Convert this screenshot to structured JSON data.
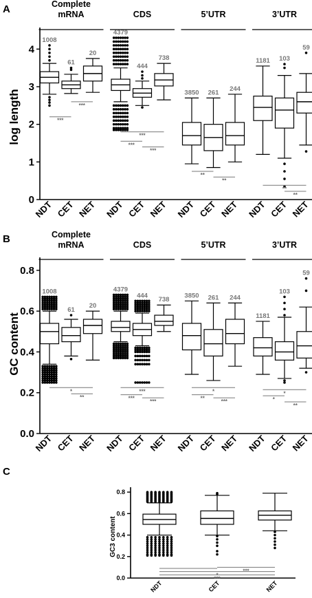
{
  "panels": [
    {
      "letter": "A",
      "ylabel": "log length",
      "yticks": [
        "0",
        "1",
        "2",
        "3",
        "4"
      ],
      "ylim": [
        0,
        4.5
      ],
      "groups": [
        "Complete mRNA",
        "CDS",
        "5’UTR",
        "3’UTR"
      ],
      "categories": [
        "NDT",
        "CET",
        "NET"
      ]
    },
    {
      "letter": "B",
      "ylabel": "GC content",
      "yticks": [
        "0.0",
        "0.2",
        "0.4",
        "0.6",
        "0.8"
      ],
      "ylim": [
        0,
        0.85
      ],
      "groups": [
        "Complete mRNA",
        "CDS",
        "5’UTR",
        "3’UTR"
      ],
      "categories": [
        "NDT",
        "CET",
        "NET"
      ]
    },
    {
      "letter": "C",
      "ylabel": "GC3 content",
      "yticks": [
        "0.0",
        "0.2",
        "0.4",
        "0.6",
        "0.8"
      ],
      "ylim": [
        0,
        0.82
      ],
      "groups": [],
      "categories": [
        "NDT",
        "CET",
        "NET"
      ]
    }
  ],
  "chart_data": [
    {
      "type": "box",
      "panel": "A",
      "ylabel": "log length",
      "ylim": [
        0,
        4.5
      ],
      "groups": [
        {
          "name": "Complete mRNA",
          "boxes": [
            {
              "category": "NDT",
              "count": "1008",
              "whislo": 2.8,
              "q1": 3.1,
              "med": 3.25,
              "q3": 3.4,
              "whishi": 3.62,
              "outliers_low": [
                2.72,
                2.65,
                2.58,
                2.5
              ],
              "outliers_high": [
                3.7,
                3.8,
                3.9,
                4.0,
                4.1
              ]
            },
            {
              "category": "CET",
              "count": "61",
              "whislo": 2.82,
              "q1": 2.95,
              "med": 3.05,
              "q3": 3.15,
              "whishi": 3.33,
              "outliers_low": [],
              "outliers_high": [
                3.45,
                3.5
              ]
            },
            {
              "category": "NET",
              "count": "20",
              "whislo": 2.85,
              "q1": 3.15,
              "med": 3.35,
              "q3": 3.55,
              "whishi": 3.75,
              "outliers_low": [],
              "outliers_high": []
            }
          ]
        },
        {
          "name": "CDS",
          "boxes": [
            {
              "category": "NDT",
              "count": "4379",
              "whislo": 2.6,
              "q1": 2.9,
              "med": 3.05,
              "q3": 3.2,
              "whishi": 3.5,
              "outliers_low": [
                2.5,
                2.4,
                2.3,
                2.2,
                2.1,
                2.0,
                1.9,
                1.85
              ],
              "outliers_high": [
                3.6,
                3.7,
                3.8,
                3.9,
                4.0,
                4.1,
                4.2,
                4.3
              ]
            },
            {
              "category": "CET",
              "count": "444",
              "whislo": 2.5,
              "q1": 2.72,
              "med": 2.83,
              "q3": 2.95,
              "whishi": 3.15,
              "outliers_low": [
                2.45
              ],
              "outliers_high": [
                3.22,
                3.3,
                3.4
              ]
            },
            {
              "category": "NET",
              "count": "738",
              "whislo": 2.65,
              "q1": 3.02,
              "med": 3.18,
              "q3": 3.35,
              "whishi": 3.62,
              "outliers_low": [],
              "outliers_high": []
            }
          ]
        },
        {
          "name": "5’UTR",
          "boxes": [
            {
              "category": "NDT",
              "count": "3850",
              "whislo": 0.95,
              "q1": 1.45,
              "med": 1.7,
              "q3": 2.05,
              "whishi": 2.7,
              "outliers_low": [],
              "outliers_high": []
            },
            {
              "category": "CET",
              "count": "261",
              "whislo": 0.85,
              "q1": 1.3,
              "med": 1.65,
              "q3": 2.0,
              "whishi": 2.7,
              "outliers_low": [],
              "outliers_high": []
            },
            {
              "category": "NET",
              "count": "244",
              "whislo": 1.0,
              "q1": 1.45,
              "med": 1.7,
              "q3": 2.05,
              "whishi": 2.8,
              "outliers_low": [],
              "outliers_high": []
            }
          ]
        },
        {
          "name": "3’UTR",
          "boxes": [
            {
              "category": "NDT",
              "count": "1181",
              "whislo": 1.2,
              "q1": 2.1,
              "med": 2.45,
              "q3": 2.75,
              "whishi": 3.55,
              "outliers_low": [],
              "outliers_high": []
            },
            {
              "category": "CET",
              "count": "103",
              "whislo": 1.1,
              "q1": 1.9,
              "med": 2.38,
              "q3": 2.7,
              "whishi": 3.3,
              "outliers_low": [
                0.95,
                0.75,
                0.55,
                0.35
              ],
              "outliers_high": [
                3.5,
                3.6
              ]
            },
            {
              "category": "NET",
              "count": "59",
              "whislo": 1.45,
              "q1": 2.3,
              "med": 2.6,
              "q3": 2.85,
              "whishi": 3.35,
              "outliers_low": [
                1.28
              ],
              "outliers_high": [
                3.9
              ]
            }
          ]
        }
      ],
      "significance": [
        {
          "group": 0,
          "from": 0,
          "to": 1,
          "label": "***",
          "y": 2.2
        },
        {
          "group": 0,
          "from": 1,
          "to": 2,
          "label": "***",
          "y": 2.6
        },
        {
          "group": 1,
          "from": 0,
          "to": 2,
          "label": "***",
          "y": 1.8
        },
        {
          "group": 1,
          "from": 0,
          "to": 1,
          "label": "***",
          "y": 1.55
        },
        {
          "group": 1,
          "from": 1,
          "to": 2,
          "label": "***",
          "y": 1.4
        },
        {
          "group": 2,
          "from": 0,
          "to": 1,
          "label": "**",
          "y": 0.75
        },
        {
          "group": 2,
          "from": 1,
          "to": 2,
          "label": "**",
          "y": 0.6
        },
        {
          "group": 3,
          "from": 0,
          "to": 2,
          "label": "**",
          "y": 0.38
        },
        {
          "group": 3,
          "from": 1,
          "to": 2,
          "label": "**",
          "y": 0.22
        }
      ]
    },
    {
      "type": "box",
      "panel": "B",
      "ylabel": "GC content",
      "ylim": [
        0,
        0.85
      ],
      "groups": [
        {
          "name": "Complete mRNA",
          "boxes": [
            {
              "category": "NDT",
              "count": "1008",
              "whislo": 0.34,
              "q1": 0.44,
              "med": 0.5,
              "q3": 0.54,
              "whishi": 0.6,
              "outliers_low": [
                0.33,
                0.32,
                0.31,
                0.3,
                0.29,
                0.28,
                0.27,
                0.26,
                0.25
              ],
              "outliers_high": [
                0.61,
                0.62,
                0.63,
                0.64,
                0.65,
                0.66,
                0.67
              ]
            },
            {
              "category": "CET",
              "count": "61",
              "whislo": 0.38,
              "q1": 0.45,
              "med": 0.48,
              "q3": 0.52,
              "whishi": 0.56,
              "outliers_low": [
                0.365
              ],
              "outliers_high": [
                0.58
              ]
            },
            {
              "category": "NET",
              "count": "20",
              "whislo": 0.36,
              "q1": 0.49,
              "med": 0.53,
              "q3": 0.56,
              "whishi": 0.6,
              "outliers_low": [],
              "outliers_high": []
            }
          ]
        },
        {
          "name": "CDS",
          "boxes": [
            {
              "category": "NDT",
              "count": "4379",
              "whislo": 0.45,
              "q1": 0.5,
              "med": 0.52,
              "q3": 0.55,
              "whishi": 0.6,
              "outliers_low": [
                0.44,
                0.43,
                0.42,
                0.41,
                0.4,
                0.39,
                0.38,
                0.37
              ],
              "outliers_high": [
                0.61,
                0.62,
                0.63,
                0.64,
                0.65,
                0.66,
                0.67,
                0.68
              ]
            },
            {
              "category": "CET",
              "count": "444",
              "whislo": 0.43,
              "q1": 0.48,
              "med": 0.51,
              "q3": 0.54,
              "whishi": 0.59,
              "outliers_low": [
                0.42,
                0.41,
                0.4,
                0.38,
                0.36,
                0.34,
                0.25
              ],
              "outliers_high": [
                0.6,
                0.61,
                0.62,
                0.63,
                0.64,
                0.65
              ]
            },
            {
              "category": "NET",
              "count": "738",
              "whislo": 0.5,
              "q1": 0.53,
              "med": 0.55,
              "q3": 0.58,
              "whishi": 0.63,
              "outliers_low": [],
              "outliers_high": []
            }
          ]
        },
        {
          "name": "5’UTR",
          "boxes": [
            {
              "category": "NDT",
              "count": "3850",
              "whislo": 0.29,
              "q1": 0.41,
              "med": 0.48,
              "q3": 0.54,
              "whishi": 0.65,
              "outliers_low": [],
              "outliers_high": []
            },
            {
              "category": "CET",
              "count": "261",
              "whislo": 0.26,
              "q1": 0.38,
              "med": 0.44,
              "q3": 0.51,
              "whishi": 0.64,
              "outliers_low": [],
              "outliers_high": []
            },
            {
              "category": "NET",
              "count": "244",
              "whislo": 0.33,
              "q1": 0.44,
              "med": 0.49,
              "q3": 0.56,
              "whishi": 0.64,
              "outliers_low": [],
              "outliers_high": []
            }
          ]
        },
        {
          "name": "3’UTR",
          "boxes": [
            {
              "category": "NDT",
              "count": "1181",
              "whislo": 0.29,
              "q1": 0.38,
              "med": 0.42,
              "q3": 0.47,
              "whishi": 0.55,
              "outliers_low": [],
              "outliers_high": []
            },
            {
              "category": "CET",
              "count": "103",
              "whislo": 0.27,
              "q1": 0.36,
              "med": 0.4,
              "q3": 0.45,
              "whishi": 0.57,
              "outliers_low": [
                0.26,
                0.25
              ],
              "outliers_high": [
                0.58,
                0.61,
                0.64,
                0.67
              ]
            },
            {
              "category": "NET",
              "count": "59",
              "whislo": 0.32,
              "q1": 0.37,
              "med": 0.43,
              "q3": 0.5,
              "whishi": 0.62,
              "outliers_low": [
                0.3
              ],
              "outliers_high": [
                0.7,
                0.76
              ]
            }
          ]
        }
      ],
      "significance": [
        {
          "group": 0,
          "from": 0,
          "to": 2,
          "label": "*",
          "y": 0.225
        },
        {
          "group": 0,
          "from": 1,
          "to": 2,
          "label": "**",
          "y": 0.195
        },
        {
          "group": 1,
          "from": 0,
          "to": 2,
          "label": "***",
          "y": 0.225
        },
        {
          "group": 1,
          "from": 0,
          "to": 1,
          "label": "***",
          "y": 0.19
        },
        {
          "group": 1,
          "from": 1,
          "to": 2,
          "label": "***",
          "y": 0.175
        },
        {
          "group": 2,
          "from": 0,
          "to": 2,
          "label": "*",
          "y": 0.225
        },
        {
          "group": 2,
          "from": 0,
          "to": 1,
          "label": "**",
          "y": 0.19
        },
        {
          "group": 2,
          "from": 1,
          "to": 2,
          "label": "***",
          "y": 0.175
        },
        {
          "group": 3,
          "from": 0,
          "to": 2,
          "label": "*",
          "y": 0.215
        },
        {
          "group": 3,
          "from": 0,
          "to": 1,
          "label": "*",
          "y": 0.185
        },
        {
          "group": 3,
          "from": 1,
          "to": 2,
          "label": "**",
          "y": 0.155
        }
      ]
    },
    {
      "type": "box",
      "panel": "C",
      "ylabel": "GC3 content",
      "ylim": [
        0,
        0.82
      ],
      "groups": [
        {
          "name": "",
          "boxes": [
            {
              "category": "NDT",
              "whislo": 0.4,
              "q1": 0.5,
              "med": 0.545,
              "q3": 0.595,
              "whishi": 0.7,
              "outliers_low": [
                0.38,
                0.36,
                0.34,
                0.32,
                0.3,
                0.28,
                0.26,
                0.24,
                0.22,
                0.21
              ],
              "outliers_high": [
                0.71,
                0.72,
                0.73,
                0.74,
                0.75,
                0.76,
                0.77,
                0.78,
                0.79,
                0.8
              ]
            },
            {
              "category": "CET",
              "whislo": 0.4,
              "q1": 0.5,
              "med": 0.555,
              "q3": 0.625,
              "whishi": 0.77,
              "outliers_low": [
                0.39,
                0.36,
                0.33,
                0.3,
                0.25,
                0.22
              ],
              "outliers_high": [
                0.78,
                0.79
              ]
            },
            {
              "category": "NET",
              "whislo": 0.44,
              "q1": 0.54,
              "med": 0.585,
              "q3": 0.625,
              "whishi": 0.79,
              "outliers_low": [
                0.43,
                0.4,
                0.37,
                0.34,
                0.31,
                0.28
              ],
              "outliers_high": []
            }
          ]
        }
      ],
      "significance": [
        {
          "group": 0,
          "from": 1,
          "to": 2,
          "label": "***",
          "y": 0.1
        },
        {
          "group": 0,
          "from": 0,
          "to": 1,
          "label": "",
          "y": 0.09
        },
        {
          "group": 0,
          "from": 0,
          "to": 2,
          "label": "*",
          "y": 0.06
        },
        {
          "group": 0,
          "from": 0,
          "to": 2,
          "label": "***",
          "y": 0.03
        }
      ]
    }
  ]
}
